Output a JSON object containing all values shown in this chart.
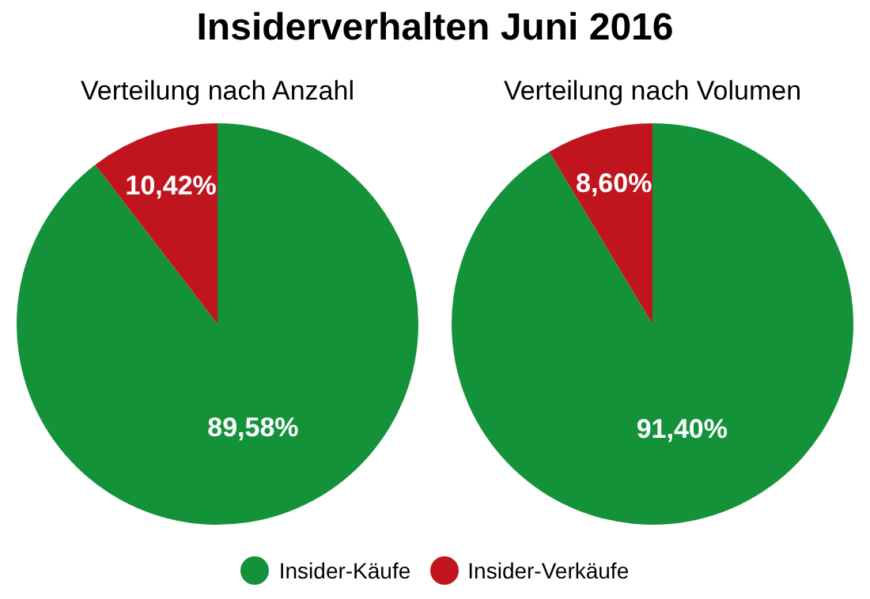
{
  "chart_data": [
    {
      "type": "pie",
      "title": "Insiderverhalten Juni 2016",
      "subtitle": "Verteilung nach Anzahl",
      "categories": [
        "Insider-Käufe",
        "Insider-Verkäufe"
      ],
      "values": [
        89.58,
        10.42
      ],
      "colors": [
        "#13923a",
        "#c0151f"
      ],
      "value_labels": [
        "89,58%",
        "10,42%"
      ],
      "legend": "bottom"
    },
    {
      "type": "pie",
      "subtitle": "Verteilung nach Volumen",
      "categories": [
        null,
        null
      ],
      "values": [
        91.4,
        8.6
      ],
      "colors": [
        "#13923a",
        "#c0151f"
      ],
      "value_labels": [
        "91,40%",
        "8,60%"
      ]
    }
  ]
}
